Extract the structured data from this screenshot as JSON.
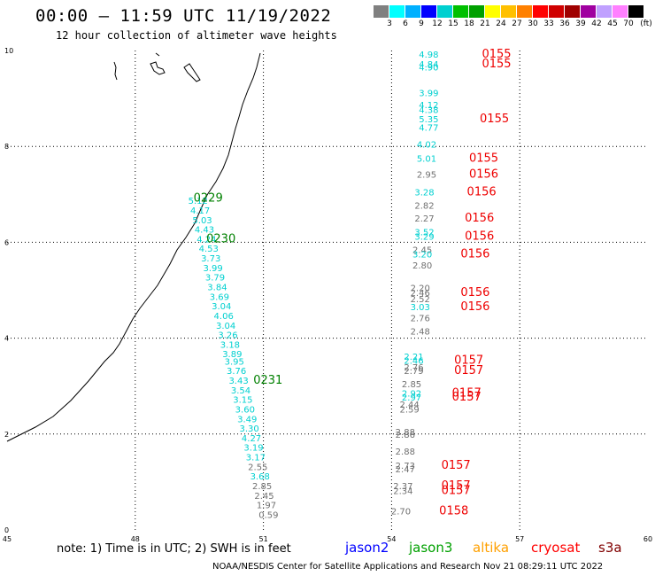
{
  "header": {
    "title": "00:00 — 11:59 UTC 11/19/2022",
    "subtitle": "12 hour collection of altimeter wave heights"
  },
  "legend": {
    "colors": [
      "#808080",
      "#00ffff",
      "#00b0ff",
      "#0000ff",
      "#00d0d0",
      "#00c000",
      "#00a000",
      "#ffff00",
      "#ffc000",
      "#ff8000",
      "#ff0000",
      "#d00000",
      "#a00000",
      "#a000a0",
      "#c0a0ff",
      "#ff80ff",
      "#000000"
    ],
    "labels": [
      "3",
      "6",
      "9",
      "12",
      "15",
      "18",
      "21",
      "24",
      "27",
      "30",
      "33",
      "36",
      "39",
      "42",
      "45",
      "70",
      "(ft)"
    ]
  },
  "axes": {
    "x_ticks": [
      "45",
      "48",
      "51",
      "54",
      "57",
      "60"
    ],
    "y_ticks": [
      "0",
      "2",
      "4",
      "6",
      "8",
      "10"
    ]
  },
  "footer": {
    "note": "note:  1) Time is in UTC;  2) SWH is in feet",
    "missions": [
      {
        "name": "jason2",
        "color": "#0000ff"
      },
      {
        "name": "jason3",
        "color": "#00a000"
      },
      {
        "name": "altika",
        "color": "#ffa000"
      },
      {
        "name": "cryosat",
        "color": "#ff0000"
      },
      {
        "name": "s3a",
        "color": "#800000"
      }
    ],
    "credit": "NOAA/NESDIS Center for Satellite Applications and Research    Nov 21 08:29:11 UTC 2022"
  },
  "map": {
    "colors": {
      "cyan": "#00d0d0",
      "gray": "#707070",
      "green": "#008000",
      "red": "#ee0000"
    },
    "track_west": [
      {
        "v": "5.12",
        "c": "cyan",
        "lon": 49.7,
        "lat": 6.8
      },
      {
        "v": "4.17",
        "c": "cyan",
        "lon": 49.75,
        "lat": 6.6
      },
      {
        "v": "5.03",
        "c": "cyan",
        "lon": 49.8,
        "lat": 6.4
      },
      {
        "v": "4.43",
        "c": "cyan",
        "lon": 49.85,
        "lat": 6.2
      },
      {
        "v": "4.24",
        "c": "cyan",
        "lon": 49.9,
        "lat": 6.0
      },
      {
        "v": "4.53",
        "c": "cyan",
        "lon": 49.95,
        "lat": 5.8
      },
      {
        "v": "3.73",
        "c": "cyan",
        "lon": 50.0,
        "lat": 5.6
      },
      {
        "v": "3.99",
        "c": "cyan",
        "lon": 50.05,
        "lat": 5.4
      },
      {
        "v": "3.79",
        "c": "cyan",
        "lon": 50.1,
        "lat": 5.2
      },
      {
        "v": "3.84",
        "c": "cyan",
        "lon": 50.15,
        "lat": 5.0
      },
      {
        "v": "3.69",
        "c": "cyan",
        "lon": 50.2,
        "lat": 4.8
      },
      {
        "v": "3.04",
        "c": "cyan",
        "lon": 50.25,
        "lat": 4.6
      },
      {
        "v": "4.06",
        "c": "cyan",
        "lon": 50.3,
        "lat": 4.4
      },
      {
        "v": "3.04",
        "c": "cyan",
        "lon": 50.35,
        "lat": 4.2
      },
      {
        "v": "3.26",
        "c": "cyan",
        "lon": 50.4,
        "lat": 4.0
      },
      {
        "v": "3.18",
        "c": "cyan",
        "lon": 50.45,
        "lat": 3.8
      },
      {
        "v": "3.89",
        "c": "cyan",
        "lon": 50.5,
        "lat": 3.6
      },
      {
        "v": "3.95",
        "c": "cyan",
        "lon": 50.55,
        "lat": 3.45
      },
      {
        "v": "3.76",
        "c": "cyan",
        "lon": 50.6,
        "lat": 3.25
      },
      {
        "v": "3.43",
        "c": "cyan",
        "lon": 50.65,
        "lat": 3.05
      },
      {
        "v": "3.54",
        "c": "cyan",
        "lon": 50.7,
        "lat": 2.85
      },
      {
        "v": "3.15",
        "c": "cyan",
        "lon": 50.75,
        "lat": 2.65
      },
      {
        "v": "3.60",
        "c": "cyan",
        "lon": 50.8,
        "lat": 2.45
      },
      {
        "v": "3.49",
        "c": "cyan",
        "lon": 50.85,
        "lat": 2.25
      },
      {
        "v": "3.30",
        "c": "cyan",
        "lon": 50.9,
        "lat": 2.05
      },
      {
        "v": "4.27",
        "c": "cyan",
        "lon": 50.95,
        "lat": 1.85
      },
      {
        "v": "3.19",
        "c": "cyan",
        "lon": 51.0,
        "lat": 1.65
      },
      {
        "v": "3.17",
        "c": "cyan",
        "lon": 51.05,
        "lat": 1.45
      },
      {
        "v": "2.55",
        "c": "gray",
        "lon": 51.1,
        "lat": 1.25
      },
      {
        "v": "3.68",
        "c": "cyan",
        "lon": 51.15,
        "lat": 1.05
      },
      {
        "v": "2.85",
        "c": "gray",
        "lon": 51.2,
        "lat": 0.85
      },
      {
        "v": "2.45",
        "c": "gray",
        "lon": 51.25,
        "lat": 0.65
      },
      {
        "v": "1.97",
        "c": "gray",
        "lon": 51.3,
        "lat": 0.45
      },
      {
        "v": "0.59",
        "c": "gray",
        "lon": 51.35,
        "lat": 0.25
      }
    ],
    "track_east": [
      {
        "v": "4.98",
        "c": "cyan",
        "lon": 55.1,
        "lat": 9.85
      },
      {
        "v": "4.84",
        "c": "cyan",
        "lon": 55.1,
        "lat": 9.65
      },
      {
        "v": "4.90",
        "c": "cyan",
        "lon": 55.1,
        "lat": 9.58
      },
      {
        "v": "3.99",
        "c": "cyan",
        "lon": 55.1,
        "lat": 9.05
      },
      {
        "v": "4.12",
        "c": "cyan",
        "lon": 55.1,
        "lat": 8.8
      },
      {
        "v": "4.38",
        "c": "cyan",
        "lon": 55.1,
        "lat": 8.7
      },
      {
        "v": "5.35",
        "c": "cyan",
        "lon": 55.1,
        "lat": 8.5
      },
      {
        "v": "4.77",
        "c": "cyan",
        "lon": 55.1,
        "lat": 8.33
      },
      {
        "v": "4.02",
        "c": "cyan",
        "lon": 55.05,
        "lat": 7.98
      },
      {
        "v": "5.01",
        "c": "cyan",
        "lon": 55.05,
        "lat": 7.68
      },
      {
        "v": "2.95",
        "c": "gray",
        "lon": 55.05,
        "lat": 7.35
      },
      {
        "v": "3.28",
        "c": "cyan",
        "lon": 55.0,
        "lat": 6.98
      },
      {
        "v": "2.82",
        "c": "gray",
        "lon": 55.0,
        "lat": 6.7
      },
      {
        "v": "2.27",
        "c": "gray",
        "lon": 55.0,
        "lat": 6.43
      },
      {
        "v": "3.52",
        "c": "cyan",
        "lon": 55.0,
        "lat": 6.15
      },
      {
        "v": "3.29",
        "c": "cyan",
        "lon": 55.0,
        "lat": 6.05
      },
      {
        "v": "2.45",
        "c": "gray",
        "lon": 54.95,
        "lat": 5.78
      },
      {
        "v": "3.20",
        "c": "cyan",
        "lon": 54.95,
        "lat": 5.68
      },
      {
        "v": "2.80",
        "c": "gray",
        "lon": 54.95,
        "lat": 5.45
      },
      {
        "v": "2.20",
        "c": "gray",
        "lon": 54.9,
        "lat": 4.98
      },
      {
        "v": "2.46",
        "c": "gray",
        "lon": 54.9,
        "lat": 4.88
      },
      {
        "v": "2.52",
        "c": "gray",
        "lon": 54.9,
        "lat": 4.75
      },
      {
        "v": "3.03",
        "c": "cyan",
        "lon": 54.9,
        "lat": 4.58
      },
      {
        "v": "2.76",
        "c": "gray",
        "lon": 54.9,
        "lat": 4.35
      },
      {
        "v": "2.48",
        "c": "gray",
        "lon": 54.9,
        "lat": 4.08
      },
      {
        "v": "2.21",
        "c": "cyan",
        "lon": 54.75,
        "lat": 3.55
      },
      {
        "v": "2.46",
        "c": "cyan",
        "lon": 54.75,
        "lat": 3.47
      },
      {
        "v": "2.76",
        "c": "gray",
        "lon": 54.75,
        "lat": 3.33
      },
      {
        "v": "2.79",
        "c": "gray",
        "lon": 54.75,
        "lat": 3.25
      },
      {
        "v": "2.85",
        "c": "gray",
        "lon": 54.7,
        "lat": 2.98
      },
      {
        "v": "2.92",
        "c": "cyan",
        "lon": 54.7,
        "lat": 2.78
      },
      {
        "v": "2.97",
        "c": "cyan",
        "lon": 54.7,
        "lat": 2.7
      },
      {
        "v": "2.44",
        "c": "gray",
        "lon": 54.65,
        "lat": 2.55
      },
      {
        "v": "2.59",
        "c": "gray",
        "lon": 54.65,
        "lat": 2.45
      },
      {
        "v": "2.88",
        "c": "gray",
        "lon": 54.55,
        "lat": 1.98
      },
      {
        "v": "2.86",
        "c": "gray",
        "lon": 54.55,
        "lat": 1.92
      },
      {
        "v": "2.88",
        "c": "gray",
        "lon": 54.55,
        "lat": 1.57
      },
      {
        "v": "2.73",
        "c": "gray",
        "lon": 54.55,
        "lat": 1.28
      },
      {
        "v": "2.47",
        "c": "gray",
        "lon": 54.55,
        "lat": 1.2
      },
      {
        "v": "2.37",
        "c": "gray",
        "lon": 54.5,
        "lat": 0.85
      },
      {
        "v": "2.34",
        "c": "gray",
        "lon": 54.5,
        "lat": 0.75
      },
      {
        "v": "2.70",
        "c": "gray",
        "lon": 54.45,
        "lat": 0.32
      }
    ],
    "times": [
      {
        "t": "0229",
        "c": "green",
        "lon": 50.05,
        "lat": 6.85
      },
      {
        "t": "0230",
        "c": "green",
        "lon": 50.35,
        "lat": 6.0
      },
      {
        "t": "0231",
        "c": "green",
        "lon": 51.45,
        "lat": 3.05
      },
      {
        "t": "0155",
        "c": "red",
        "lon": 56.8,
        "lat": 9.85
      },
      {
        "t": "0155",
        "c": "red",
        "lon": 56.8,
        "lat": 9.65
      },
      {
        "t": "0155",
        "c": "red",
        "lon": 56.75,
        "lat": 8.5
      },
      {
        "t": "0155",
        "c": "red",
        "lon": 56.5,
        "lat": 7.68
      },
      {
        "t": "0156",
        "c": "red",
        "lon": 56.5,
        "lat": 7.35
      },
      {
        "t": "0156",
        "c": "red",
        "lon": 56.45,
        "lat": 6.98
      },
      {
        "t": "0156",
        "c": "red",
        "lon": 56.4,
        "lat": 6.43
      },
      {
        "t": "0156",
        "c": "red",
        "lon": 56.4,
        "lat": 6.05
      },
      {
        "t": "0156",
        "c": "red",
        "lon": 56.3,
        "lat": 5.68
      },
      {
        "t": "0156",
        "c": "red",
        "lon": 56.3,
        "lat": 4.88
      },
      {
        "t": "0156",
        "c": "red",
        "lon": 56.3,
        "lat": 4.58
      },
      {
        "t": "0157",
        "c": "red",
        "lon": 56.15,
        "lat": 3.47
      },
      {
        "t": "0157",
        "c": "red",
        "lon": 56.15,
        "lat": 3.25
      },
      {
        "t": "0157",
        "c": "red",
        "lon": 56.1,
        "lat": 2.78
      },
      {
        "t": "0157",
        "c": "red",
        "lon": 56.1,
        "lat": 2.7
      },
      {
        "t": "0157",
        "c": "red",
        "lon": 55.85,
        "lat": 1.28
      },
      {
        "t": "0157",
        "c": "red",
        "lon": 55.85,
        "lat": 0.85
      },
      {
        "t": "0157",
        "c": "red",
        "lon": 55.85,
        "lat": 0.75
      },
      {
        "t": "0158",
        "c": "red",
        "lon": 55.8,
        "lat": 0.32
      }
    ]
  }
}
